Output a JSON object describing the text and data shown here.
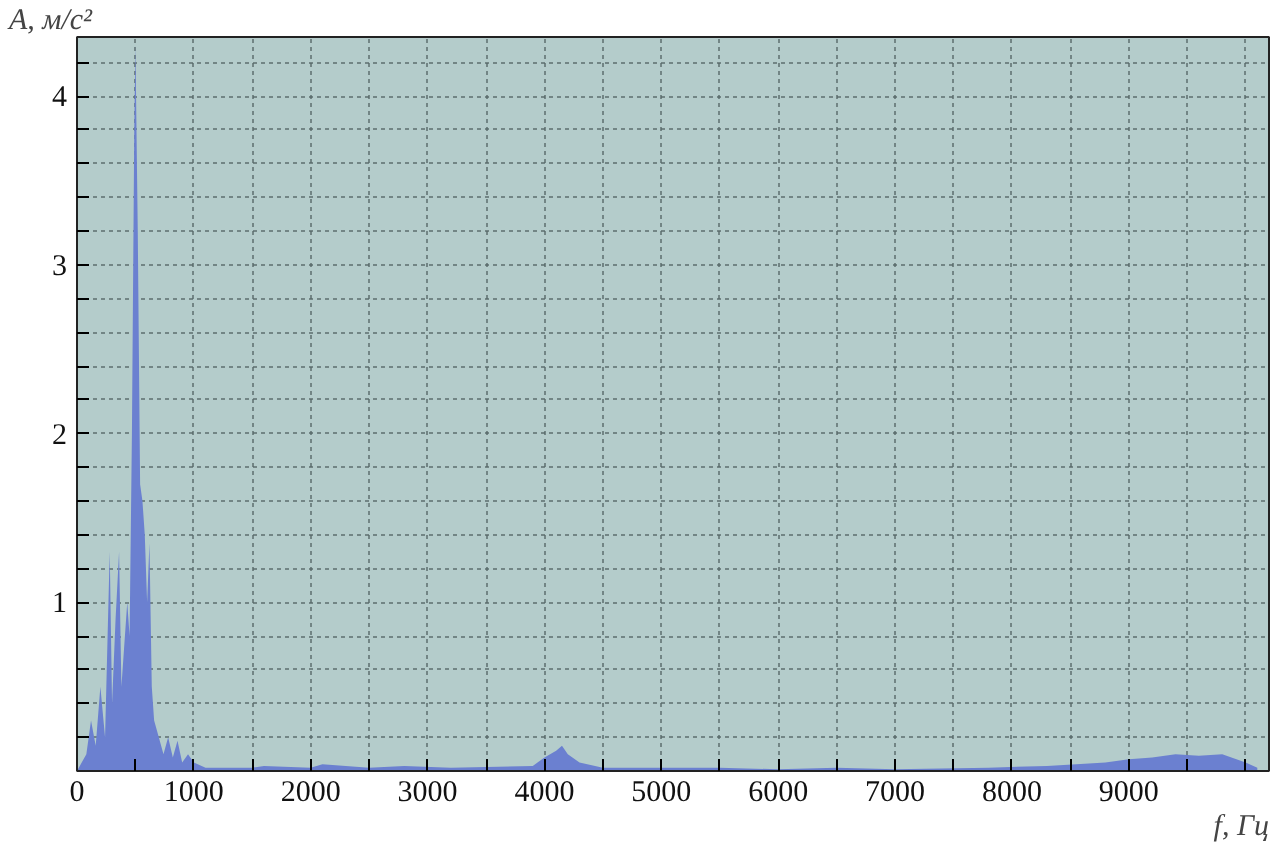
{
  "chart_data": {
    "type": "area",
    "xlabel": "f, Гц",
    "ylabel": "A, м/с²",
    "x": [
      0,
      80,
      120,
      160,
      200,
      240,
      280,
      300,
      330,
      360,
      380,
      400,
      430,
      450,
      470,
      490,
      500,
      520,
      540,
      560,
      580,
      600,
      620,
      640,
      660,
      700,
      740,
      780,
      820,
      860,
      900,
      950,
      1000,
      1100,
      1500,
      1600,
      2000,
      2100,
      2500,
      2800,
      3200,
      3900,
      4000,
      4100,
      4150,
      4200,
      4300,
      4500,
      5000,
      5500,
      6000,
      6500,
      7000,
      7800,
      8300,
      8800,
      9000,
      9200,
      9400,
      9600,
      9800,
      10000,
      10100
    ],
    "series": [
      {
        "color": "#6b80d0",
        "values": [
          0,
          0.1,
          0.3,
          0.15,
          0.5,
          0.2,
          1.3,
          0.4,
          0.9,
          1.3,
          0.5,
          0.7,
          1.0,
          0.8,
          2.0,
          3.8,
          4.3,
          3.2,
          1.7,
          1.6,
          1.4,
          1.0,
          1.35,
          0.5,
          0.3,
          0.2,
          0.1,
          0.2,
          0.08,
          0.18,
          0.05,
          0.1,
          0.05,
          0.02,
          0.02,
          0.03,
          0.02,
          0.04,
          0.02,
          0.03,
          0.02,
          0.03,
          0.08,
          0.12,
          0.15,
          0.1,
          0.05,
          0.02,
          0.02,
          0.02,
          0.01,
          0.02,
          0.01,
          0.02,
          0.03,
          0.05,
          0.07,
          0.08,
          0.1,
          0.09,
          0.1,
          0.05,
          0.02
        ]
      }
    ],
    "xlim": [
      0,
      10200
    ],
    "ylim": [
      0,
      4.35
    ],
    "xticks": [
      0,
      {
        "value": 500,
        "label": null
      },
      1000,
      {
        "value": 1500,
        "label": null
      },
      2000,
      {
        "value": 2500,
        "label": null
      },
      3000,
      {
        "value": 3500,
        "label": null
      },
      4000,
      {
        "value": 4500,
        "label": null
      },
      5000,
      {
        "value": 5500,
        "label": null
      },
      6000,
      {
        "value": 6500,
        "label": null
      },
      7000,
      {
        "value": 7500,
        "label": null
      },
      8000,
      {
        "value": 8500,
        "label": null
      },
      9000,
      {
        "value": 9500,
        "label": null
      },
      {
        "value": 10000,
        "label": null
      }
    ],
    "yticks": [
      {
        "value": 0.2,
        "label": null
      },
      {
        "value": 0.4,
        "label": null
      },
      {
        "value": 0.6,
        "label": null
      },
      {
        "value": 0.8,
        "label": null
      },
      1,
      {
        "value": 1.2,
        "label": null
      },
      {
        "value": 1.4,
        "label": null
      },
      {
        "value": 1.6,
        "label": null
      },
      {
        "value": 1.8,
        "label": null
      },
      2,
      {
        "value": 2.2,
        "label": null
      },
      {
        "value": 2.4,
        "label": null
      },
      {
        "value": 2.6,
        "label": null
      },
      {
        "value": 2.8,
        "label": null
      },
      3,
      {
        "value": 3.2,
        "label": null
      },
      {
        "value": 3.4,
        "label": null
      },
      {
        "value": 3.6,
        "label": null
      },
      {
        "value": 3.8,
        "label": null
      },
      4,
      {
        "value": 4.2,
        "label": null
      }
    ],
    "grid": true
  }
}
